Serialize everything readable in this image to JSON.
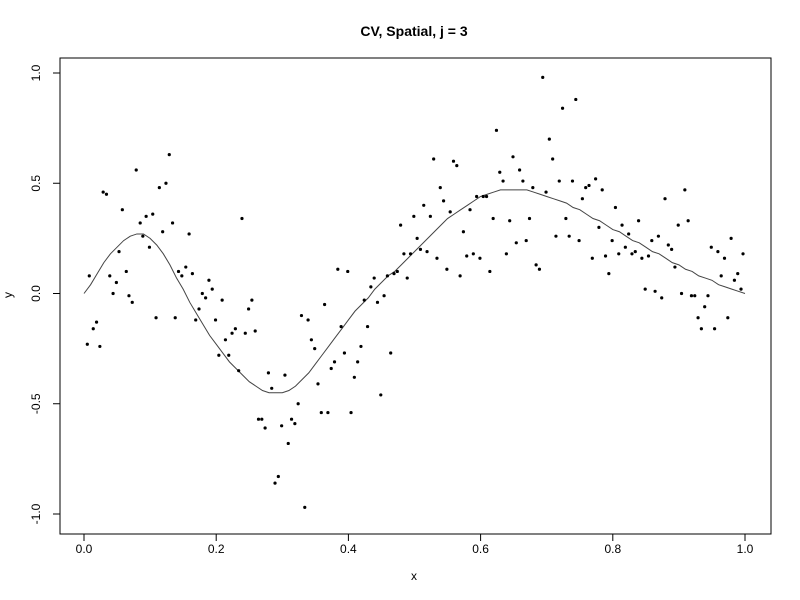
{
  "chart_data": {
    "type": "scatter",
    "title": "CV, Spatial, j = 3",
    "xlabel": "x",
    "ylabel": "y",
    "xlim": [
      0.0,
      1.0
    ],
    "ylim": [
      -1.0,
      1.0
    ],
    "x_ticks": [
      {
        "value": 0.0,
        "label": "0.0"
      },
      {
        "value": 0.2,
        "label": "0.2"
      },
      {
        "value": 0.4,
        "label": "0.4"
      },
      {
        "value": 0.6,
        "label": "0.6"
      },
      {
        "value": 0.8,
        "label": "0.8"
      },
      {
        "value": 1.0,
        "label": "1.0"
      }
    ],
    "y_ticks": [
      {
        "value": -1.0,
        "label": "-1.0"
      },
      {
        "value": -0.5,
        "label": "-0.5"
      },
      {
        "value": 0.0,
        "label": "0.0"
      },
      {
        "value": 0.5,
        "label": "0.5"
      },
      {
        "value": 1.0,
        "label": "1.0"
      }
    ],
    "grid": false,
    "legend": "none",
    "colors": {
      "points": "#000000",
      "curve": "#444444",
      "frame": "#000000",
      "background": "#ffffff"
    },
    "series": [
      {
        "type": "scatter",
        "points": [
          [
            0.005,
            -0.23
          ],
          [
            0.008,
            0.08
          ],
          [
            0.014,
            -0.16
          ],
          [
            0.019,
            -0.13
          ],
          [
            0.024,
            -0.24
          ],
          [
            0.029,
            0.46
          ],
          [
            0.034,
            0.45
          ],
          [
            0.039,
            0.08
          ],
          [
            0.044,
            0.0
          ],
          [
            0.049,
            0.05
          ],
          [
            0.053,
            0.19
          ],
          [
            0.058,
            0.38
          ],
          [
            0.064,
            0.1
          ],
          [
            0.068,
            -0.01
          ],
          [
            0.073,
            -0.04
          ],
          [
            0.079,
            0.56
          ],
          [
            0.085,
            0.32
          ],
          [
            0.089,
            0.26
          ],
          [
            0.094,
            0.35
          ],
          [
            0.099,
            0.21
          ],
          [
            0.104,
            0.36
          ],
          [
            0.109,
            -0.11
          ],
          [
            0.114,
            0.48
          ],
          [
            0.119,
            0.28
          ],
          [
            0.124,
            0.5
          ],
          [
            0.129,
            0.63
          ],
          [
            0.134,
            0.32
          ],
          [
            0.138,
            -0.11
          ],
          [
            0.143,
            0.1
          ],
          [
            0.148,
            0.08
          ],
          [
            0.154,
            0.12
          ],
          [
            0.159,
            0.27
          ],
          [
            0.164,
            0.09
          ],
          [
            0.169,
            -0.12
          ],
          [
            0.174,
            -0.07
          ],
          [
            0.179,
            0.0
          ],
          [
            0.184,
            -0.02
          ],
          [
            0.189,
            0.06
          ],
          [
            0.194,
            0.02
          ],
          [
            0.199,
            -0.12
          ],
          [
            0.204,
            -0.28
          ],
          [
            0.209,
            -0.03
          ],
          [
            0.214,
            -0.21
          ],
          [
            0.219,
            -0.28
          ],
          [
            0.224,
            -0.18
          ],
          [
            0.229,
            -0.16
          ],
          [
            0.234,
            -0.35
          ],
          [
            0.239,
            0.34
          ],
          [
            0.244,
            -0.18
          ],
          [
            0.249,
            -0.07
          ],
          [
            0.254,
            -0.03
          ],
          [
            0.259,
            -0.17
          ],
          [
            0.264,
            -0.57
          ],
          [
            0.269,
            -0.57
          ],
          [
            0.274,
            -0.61
          ],
          [
            0.279,
            -0.36
          ],
          [
            0.284,
            -0.43
          ],
          [
            0.289,
            -0.86
          ],
          [
            0.294,
            -0.83
          ],
          [
            0.299,
            -0.6
          ],
          [
            0.304,
            -0.37
          ],
          [
            0.309,
            -0.68
          ],
          [
            0.314,
            -0.57
          ],
          [
            0.319,
            -0.59
          ],
          [
            0.324,
            -0.5
          ],
          [
            0.329,
            -0.1
          ],
          [
            0.334,
            -0.97
          ],
          [
            0.339,
            -0.12
          ],
          [
            0.344,
            -0.21
          ],
          [
            0.349,
            -0.25
          ],
          [
            0.354,
            -0.41
          ],
          [
            0.359,
            -0.54
          ],
          [
            0.364,
            -0.05
          ],
          [
            0.369,
            -0.54
          ],
          [
            0.374,
            -0.34
          ],
          [
            0.379,
            -0.31
          ],
          [
            0.384,
            0.11
          ],
          [
            0.389,
            -0.15
          ],
          [
            0.394,
            -0.27
          ],
          [
            0.399,
            0.1
          ],
          [
            0.404,
            -0.54
          ],
          [
            0.409,
            -0.38
          ],
          [
            0.414,
            -0.31
          ],
          [
            0.419,
            -0.24
          ],
          [
            0.424,
            -0.03
          ],
          [
            0.429,
            -0.15
          ],
          [
            0.434,
            0.03
          ],
          [
            0.439,
            0.07
          ],
          [
            0.444,
            -0.04
          ],
          [
            0.449,
            -0.46
          ],
          [
            0.454,
            -0.01
          ],
          [
            0.459,
            0.08
          ],
          [
            0.464,
            -0.27
          ],
          [
            0.469,
            0.09
          ],
          [
            0.474,
            0.1
          ],
          [
            0.479,
            0.31
          ],
          [
            0.484,
            0.18
          ],
          [
            0.489,
            0.07
          ],
          [
            0.494,
            0.18
          ],
          [
            0.499,
            0.35
          ],
          [
            0.504,
            0.25
          ],
          [
            0.509,
            0.2
          ],
          [
            0.514,
            0.4
          ],
          [
            0.519,
            0.19
          ],
          [
            0.524,
            0.35
          ],
          [
            0.529,
            0.61
          ],
          [
            0.534,
            0.16
          ],
          [
            0.539,
            0.48
          ],
          [
            0.544,
            0.42
          ],
          [
            0.549,
            0.11
          ],
          [
            0.554,
            0.37
          ],
          [
            0.559,
            0.6
          ],
          [
            0.564,
            0.58
          ],
          [
            0.569,
            0.08
          ],
          [
            0.574,
            0.28
          ],
          [
            0.579,
            0.17
          ],
          [
            0.584,
            0.38
          ],
          [
            0.589,
            0.18
          ],
          [
            0.594,
            0.44
          ],
          [
            0.599,
            0.16
          ],
          [
            0.604,
            0.44
          ],
          [
            0.609,
            0.44
          ],
          [
            0.614,
            0.1
          ],
          [
            0.619,
            0.34
          ],
          [
            0.624,
            0.74
          ],
          [
            0.629,
            0.55
          ],
          [
            0.634,
            0.51
          ],
          [
            0.639,
            0.18
          ],
          [
            0.644,
            0.33
          ],
          [
            0.649,
            0.62
          ],
          [
            0.654,
            0.23
          ],
          [
            0.659,
            0.56
          ],
          [
            0.664,
            0.51
          ],
          [
            0.669,
            0.24
          ],
          [
            0.674,
            0.34
          ],
          [
            0.679,
            0.48
          ],
          [
            0.684,
            0.13
          ],
          [
            0.689,
            0.11
          ],
          [
            0.694,
            0.98
          ],
          [
            0.699,
            0.46
          ],
          [
            0.704,
            0.7
          ],
          [
            0.709,
            0.61
          ],
          [
            0.714,
            0.26
          ],
          [
            0.719,
            0.51
          ],
          [
            0.724,
            0.84
          ],
          [
            0.729,
            0.34
          ],
          [
            0.734,
            0.26
          ],
          [
            0.739,
            0.51
          ],
          [
            0.744,
            0.88
          ],
          [
            0.749,
            0.24
          ],
          [
            0.754,
            0.43
          ],
          [
            0.759,
            0.48
          ],
          [
            0.764,
            0.49
          ],
          [
            0.769,
            0.16
          ],
          [
            0.774,
            0.52
          ],
          [
            0.779,
            0.3
          ],
          [
            0.784,
            0.47
          ],
          [
            0.789,
            0.17
          ],
          [
            0.794,
            0.09
          ],
          [
            0.799,
            0.24
          ],
          [
            0.804,
            0.39
          ],
          [
            0.809,
            0.18
          ],
          [
            0.814,
            0.31
          ],
          [
            0.819,
            0.21
          ],
          [
            0.824,
            0.27
          ],
          [
            0.829,
            0.18
          ],
          [
            0.834,
            0.19
          ],
          [
            0.839,
            0.33
          ],
          [
            0.844,
            0.16
          ],
          [
            0.849,
            0.02
          ],
          [
            0.854,
            0.17
          ],
          [
            0.859,
            0.24
          ],
          [
            0.864,
            0.01
          ],
          [
            0.869,
            0.26
          ],
          [
            0.874,
            -0.02
          ],
          [
            0.879,
            0.43
          ],
          [
            0.884,
            0.22
          ],
          [
            0.889,
            0.2
          ],
          [
            0.894,
            0.12
          ],
          [
            0.899,
            0.31
          ],
          [
            0.904,
            0.0
          ],
          [
            0.909,
            0.47
          ],
          [
            0.914,
            0.33
          ],
          [
            0.919,
            -0.01
          ],
          [
            0.924,
            -0.01
          ],
          [
            0.929,
            -0.11
          ],
          [
            0.934,
            -0.16
          ],
          [
            0.939,
            -0.06
          ],
          [
            0.944,
            -0.01
          ],
          [
            0.949,
            0.21
          ],
          [
            0.954,
            -0.16
          ],
          [
            0.959,
            0.19
          ],
          [
            0.964,
            0.08
          ],
          [
            0.969,
            0.16
          ],
          [
            0.974,
            -0.11
          ],
          [
            0.979,
            0.25
          ],
          [
            0.984,
            0.06
          ],
          [
            0.989,
            0.09
          ],
          [
            0.994,
            0.02
          ],
          [
            0.997,
            0.18
          ]
        ]
      },
      {
        "type": "line",
        "points": [
          [
            0.0,
            0.0
          ],
          [
            0.01,
            0.04
          ],
          [
            0.02,
            0.09
          ],
          [
            0.03,
            0.14
          ],
          [
            0.04,
            0.18
          ],
          [
            0.05,
            0.21
          ],
          [
            0.06,
            0.24
          ],
          [
            0.07,
            0.26
          ],
          [
            0.08,
            0.27
          ],
          [
            0.09,
            0.27
          ],
          [
            0.1,
            0.25
          ],
          [
            0.11,
            0.22
          ],
          [
            0.12,
            0.18
          ],
          [
            0.13,
            0.13
          ],
          [
            0.14,
            0.07
          ],
          [
            0.15,
            0.02
          ],
          [
            0.16,
            -0.04
          ],
          [
            0.17,
            -0.09
          ],
          [
            0.18,
            -0.14
          ],
          [
            0.19,
            -0.19
          ],
          [
            0.2,
            -0.23
          ],
          [
            0.21,
            -0.27
          ],
          [
            0.22,
            -0.31
          ],
          [
            0.23,
            -0.34
          ],
          [
            0.24,
            -0.37
          ],
          [
            0.25,
            -0.4
          ],
          [
            0.26,
            -0.42
          ],
          [
            0.27,
            -0.44
          ],
          [
            0.28,
            -0.45
          ],
          [
            0.29,
            -0.45
          ],
          [
            0.3,
            -0.45
          ],
          [
            0.31,
            -0.44
          ],
          [
            0.32,
            -0.42
          ],
          [
            0.33,
            -0.39
          ],
          [
            0.34,
            -0.36
          ],
          [
            0.35,
            -0.32
          ],
          [
            0.36,
            -0.28
          ],
          [
            0.37,
            -0.24
          ],
          [
            0.38,
            -0.2
          ],
          [
            0.39,
            -0.16
          ],
          [
            0.4,
            -0.12
          ],
          [
            0.41,
            -0.08
          ],
          [
            0.42,
            -0.05
          ],
          [
            0.43,
            -0.02
          ],
          [
            0.44,
            0.02
          ],
          [
            0.45,
            0.05
          ],
          [
            0.46,
            0.08
          ],
          [
            0.47,
            0.1
          ],
          [
            0.48,
            0.13
          ],
          [
            0.49,
            0.16
          ],
          [
            0.5,
            0.19
          ],
          [
            0.51,
            0.22
          ],
          [
            0.52,
            0.25
          ],
          [
            0.53,
            0.28
          ],
          [
            0.54,
            0.31
          ],
          [
            0.55,
            0.34
          ],
          [
            0.56,
            0.36
          ],
          [
            0.57,
            0.38
          ],
          [
            0.58,
            0.4
          ],
          [
            0.59,
            0.42
          ],
          [
            0.6,
            0.44
          ],
          [
            0.61,
            0.45
          ],
          [
            0.62,
            0.46
          ],
          [
            0.63,
            0.47
          ],
          [
            0.64,
            0.47
          ],
          [
            0.65,
            0.47
          ],
          [
            0.66,
            0.47
          ],
          [
            0.67,
            0.47
          ],
          [
            0.68,
            0.46
          ],
          [
            0.69,
            0.45
          ],
          [
            0.7,
            0.44
          ],
          [
            0.71,
            0.43
          ],
          [
            0.72,
            0.42
          ],
          [
            0.73,
            0.41
          ],
          [
            0.74,
            0.39
          ],
          [
            0.75,
            0.38
          ],
          [
            0.76,
            0.36
          ],
          [
            0.77,
            0.34
          ],
          [
            0.78,
            0.33
          ],
          [
            0.79,
            0.31
          ],
          [
            0.8,
            0.29
          ],
          [
            0.81,
            0.28
          ],
          [
            0.82,
            0.26
          ],
          [
            0.83,
            0.24
          ],
          [
            0.84,
            0.23
          ],
          [
            0.85,
            0.21
          ],
          [
            0.86,
            0.19
          ],
          [
            0.87,
            0.18
          ],
          [
            0.88,
            0.16
          ],
          [
            0.89,
            0.14
          ],
          [
            0.9,
            0.13
          ],
          [
            0.91,
            0.11
          ],
          [
            0.92,
            0.1
          ],
          [
            0.93,
            0.08
          ],
          [
            0.94,
            0.07
          ],
          [
            0.95,
            0.06
          ],
          [
            0.96,
            0.04
          ],
          [
            0.97,
            0.03
          ],
          [
            0.98,
            0.02
          ],
          [
            0.99,
            0.01
          ],
          [
            1.0,
            0.0
          ]
        ]
      }
    ]
  }
}
